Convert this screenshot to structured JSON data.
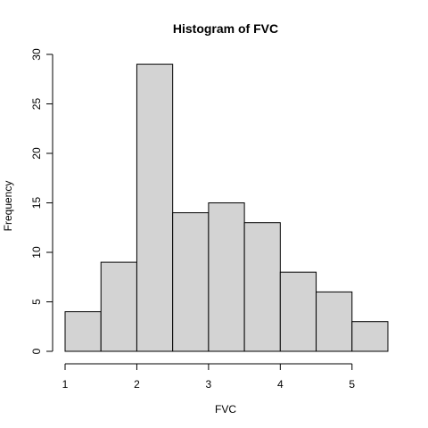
{
  "chart_data": {
    "type": "bar",
    "title": "Histogram of  FVC",
    "xlabel": "FVC",
    "ylabel": "Frequency",
    "bins": [
      {
        "start": 1.0,
        "end": 1.5,
        "count": 4
      },
      {
        "start": 1.5,
        "end": 2.0,
        "count": 9
      },
      {
        "start": 2.0,
        "end": 2.5,
        "count": 29
      },
      {
        "start": 2.5,
        "end": 3.0,
        "count": 14
      },
      {
        "start": 3.0,
        "end": 3.5,
        "count": 15
      },
      {
        "start": 3.5,
        "end": 4.0,
        "count": 13
      },
      {
        "start": 4.0,
        "end": 4.5,
        "count": 8
      },
      {
        "start": 4.5,
        "end": 5.0,
        "count": 6
      },
      {
        "start": 5.0,
        "end": 5.5,
        "count": 3
      }
    ],
    "xlim": [
      1.0,
      5.5
    ],
    "ylim": [
      0,
      30
    ],
    "x_ticks": [
      1,
      2,
      3,
      4,
      5
    ],
    "y_ticks": [
      0,
      5,
      10,
      15,
      20,
      25,
      30
    ],
    "x_tick_labels": [
      "1",
      "2",
      "3",
      "4",
      "5"
    ],
    "y_tick_labels": [
      "0",
      "5",
      "10",
      "15",
      "20",
      "25",
      "30"
    ],
    "bar_color": "#d3d3d3",
    "edge_color": "#000000",
    "grid": false,
    "legend": "none"
  }
}
